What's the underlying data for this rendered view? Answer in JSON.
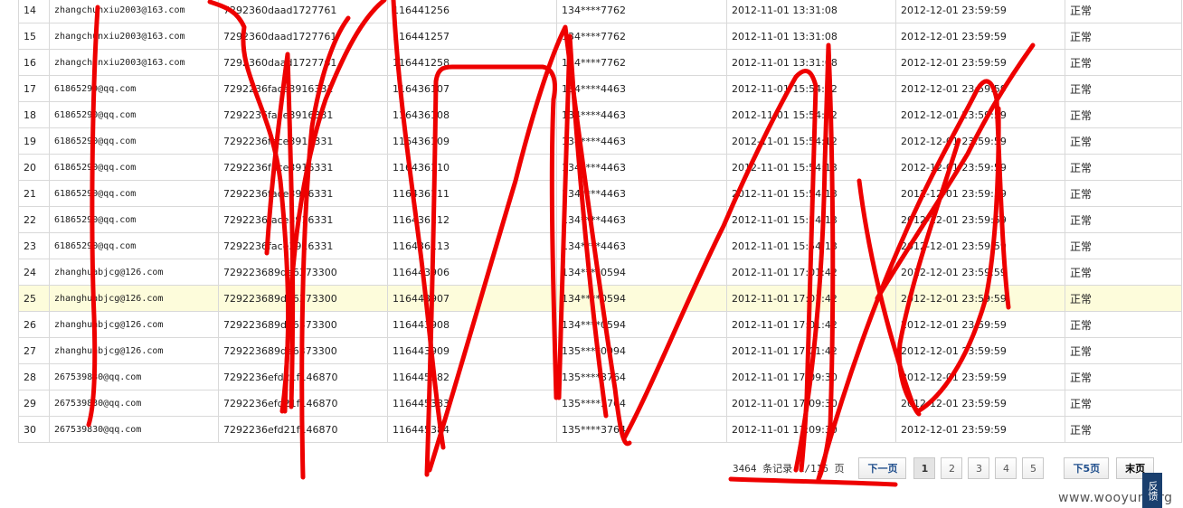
{
  "table": {
    "rows": [
      [
        "14",
        "zhangchunxiu2003@163.com",
        "7292360daad1727761",
        "116441256",
        "134****7762",
        "2012-11-01 13:31:08",
        "2012-12-01 23:59:59",
        "正常"
      ],
      [
        "15",
        "zhangchunxiu2003@163.com",
        "7292360daad1727761",
        "116441257",
        "134****7762",
        "2012-11-01 13:31:08",
        "2012-12-01 23:59:59",
        "正常"
      ],
      [
        "16",
        "zhangchunxiu2003@163.com",
        "7292360daad1727761",
        "116441258",
        "134****7762",
        "2012-11-01 13:31:08",
        "2012-12-01 23:59:59",
        "正常"
      ],
      [
        "17",
        "61865290@qq.com",
        "7292236face3916331",
        "116436107",
        "134****4463",
        "2012-11-01 15:54:12",
        "2012-12-01 23:59:59",
        "正常"
      ],
      [
        "18",
        "61865290@qq.com",
        "7292236face3916331",
        "116436108",
        "134****4463",
        "2012-11-01 15:54:12",
        "2012-12-01 23:59:59",
        "正常"
      ],
      [
        "19",
        "61865290@qq.com",
        "7292236face3916331",
        "116436109",
        "134****4463",
        "2012-11-01 15:54:12",
        "2012-12-01 23:59:59",
        "正常"
      ],
      [
        "20",
        "61865290@qq.com",
        "7292236face3916331",
        "116436110",
        "134****4463",
        "2012-11-01 15:54:13",
        "2012-12-01 23:59:59",
        "正常"
      ],
      [
        "21",
        "61865290@qq.com",
        "7292236face3916331",
        "116436111",
        "134****4463",
        "2012-11-01 15:54:13",
        "2012-12-01 23:59:59",
        "正常"
      ],
      [
        "22",
        "61865290@qq.com",
        "7292236face3916331",
        "116436112",
        "134****4463",
        "2012-11-01 15:54:13",
        "2012-12-01 23:59:59",
        "正常"
      ],
      [
        "23",
        "61865290@qq.com",
        "7292236face3916331",
        "116436113",
        "134****4463",
        "2012-11-01 15:54:13",
        "2012-12-01 23:59:59",
        "正常"
      ],
      [
        "24",
        "zhanghuabjcg@126.com",
        "729223689de6373300",
        "116443906",
        "134****0594",
        "2012-11-01 17:01:42",
        "2012-12-01 23:59:59",
        "正常"
      ],
      [
        "25",
        "zhanghuabjcg@126.com",
        "729223689de6373300",
        "116443907",
        "134****0594",
        "2012-11-01 17:01:42",
        "2012-12-01 23:59:59",
        "正常"
      ],
      [
        "26",
        "zhanghuabjcg@126.com",
        "729223689de6373300",
        "116443908",
        "134****0594",
        "2012-11-01 17:01:42",
        "2012-12-01 23:59:59",
        "正常"
      ],
      [
        "27",
        "zhanghuabjcg@126.com",
        "729223689de6373300",
        "116443909",
        "135****0094",
        "2012-11-01 17:01:42",
        "2012-12-01 23:59:59",
        "正常"
      ],
      [
        "28",
        "267539830@qq.com",
        "7292236efd21f146870",
        "116445382",
        "135****3764",
        "2012-11-01 17:09:30",
        "2012-12-01 23:59:59",
        "正常"
      ],
      [
        "29",
        "267539830@qq.com",
        "7292236efd21f146870",
        "116445383",
        "135****3764",
        "2012-11-01 17:09:30",
        "2012-12-01 23:59:59",
        "正常"
      ],
      [
        "30",
        "267539830@qq.com",
        "7292236efd21f146870",
        "116445384",
        "135****3764",
        "2012-11-01 17:09:30",
        "2012-12-01 23:59:59",
        "正常"
      ]
    ],
    "highlighted_row": 11
  },
  "pager": {
    "summary": "3464 条记录 1/116 页",
    "next_label": "下一页",
    "pages": [
      "1",
      "2",
      "3",
      "4",
      "5"
    ],
    "current_page": "1",
    "next5_label": "下5页",
    "last_label": "末页"
  },
  "watermark": "www.wooyun.org",
  "feedback_label": "反馈",
  "colors": {
    "scribble": "#ee0000",
    "highlight_row": "#fdfcdb",
    "pager_link": "#1f4e8c"
  }
}
